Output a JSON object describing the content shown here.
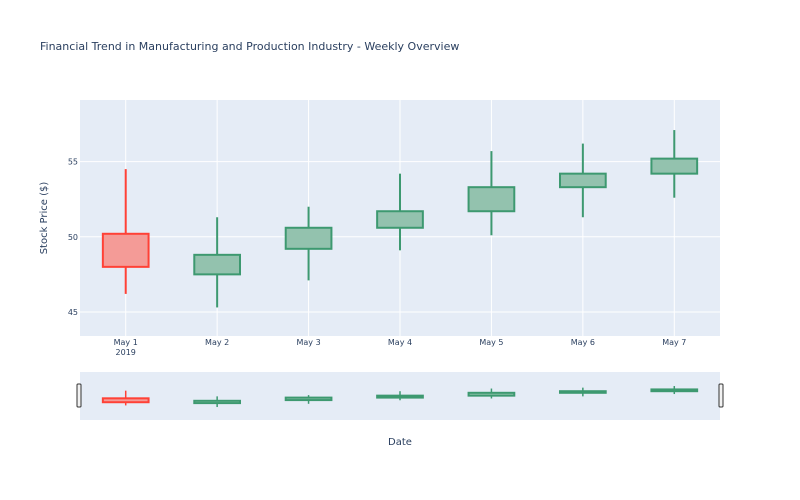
{
  "chart_data": {
    "type": "candlestick",
    "title": "Financial Trend in Manufacturing and Production Industry - Weekly Overview",
    "xlabel": "Date",
    "ylabel": "Stock Price ($)",
    "categories": [
      "May 1",
      "May 2",
      "May 3",
      "May 4",
      "May 5",
      "May 6",
      "May 7"
    ],
    "x_year_label": "2019",
    "y_ticks": [
      45,
      50,
      55
    ],
    "ylim": [
      43.4,
      59.1
    ],
    "ohlc": [
      {
        "date": "May 1",
        "open": 50.2,
        "high": 54.5,
        "low": 46.2,
        "close": 48.0
      },
      {
        "date": "May 2",
        "open": 47.5,
        "high": 51.3,
        "low": 45.3,
        "close": 48.8
      },
      {
        "date": "May 3",
        "open": 49.2,
        "high": 52.0,
        "low": 47.1,
        "close": 50.6
      },
      {
        "date": "May 4",
        "open": 50.6,
        "high": 54.2,
        "low": 49.1,
        "close": 51.7
      },
      {
        "date": "May 5",
        "open": 51.7,
        "high": 55.7,
        "low": 50.1,
        "close": 53.3
      },
      {
        "date": "May 6",
        "open": 53.3,
        "high": 56.2,
        "low": 51.3,
        "close": 54.2
      },
      {
        "date": "May 7",
        "open": 54.2,
        "high": 57.1,
        "low": 52.6,
        "close": 55.2
      }
    ],
    "increasing_color": "#3d9970",
    "increasing_fill": "#93c2ae",
    "decreasing_color": "#ff4136",
    "decreasing_fill": "#f49b97",
    "plot_bg": "#e5ecf6",
    "grid": true,
    "rangeslider": true
  }
}
